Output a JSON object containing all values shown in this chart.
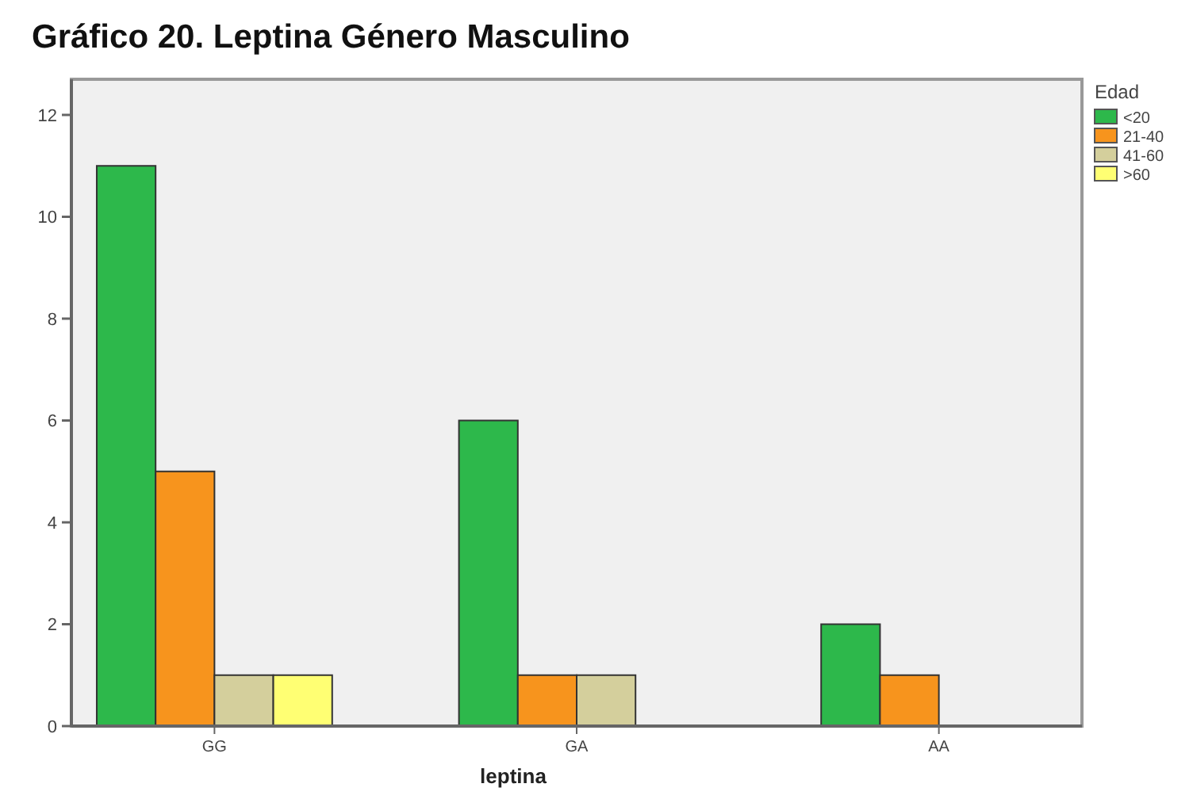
{
  "chart_data": {
    "type": "bar",
    "title": "Gráfico  20. Leptina Género Masculino",
    "xlabel": "leptina",
    "legend_title": "Edad",
    "categories": [
      "GG",
      "GA",
      "AA"
    ],
    "series": [
      {
        "name": "<20",
        "color": "#2db84b",
        "values": [
          11,
          6,
          2
        ]
      },
      {
        "name": "21-40",
        "color": "#f7941d",
        "values": [
          5,
          1,
          1
        ]
      },
      {
        "name": "41-60",
        "color": "#d4cf9c",
        "values": [
          1,
          1,
          null
        ]
      },
      {
        "name": ">60",
        "color": "#ffff73",
        "values": [
          1,
          null,
          null
        ]
      }
    ],
    "ylim": [
      0,
      12.7
    ],
    "yticks": [
      0,
      2,
      4,
      6,
      8,
      10,
      12
    ],
    "legend": "top right",
    "grid": false
  }
}
